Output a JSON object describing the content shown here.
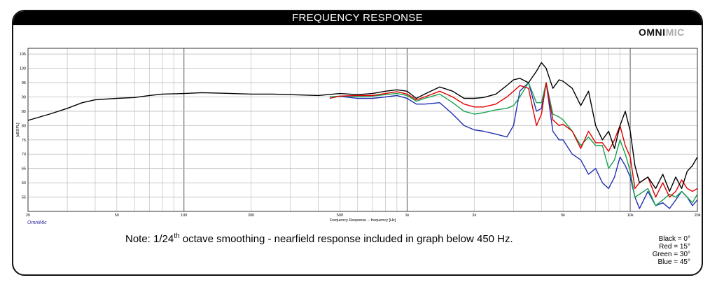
{
  "title": "FREQUENCY RESPONSE",
  "brand": {
    "part1": "OMNI",
    "part2": "MIC"
  },
  "app_tag": "OmniMic",
  "note": {
    "before": "Note: 1/24",
    "sup": "th",
    "after": " octave smoothing - nearfield response included in graph below 450 Hz."
  },
  "legend": [
    "Black = 0°",
    "Red = 15°",
    "Green = 30°",
    "Blue = 45°"
  ],
  "chart_data": {
    "type": "line",
    "xlabel": "Frequency Response -- frequency [Hz]",
    "ylabel": "[dBSPL]",
    "xscale": "log",
    "xlim": [
      20,
      20000
    ],
    "ylim": [
      50,
      107
    ],
    "grid": true,
    "x_tick_labels": [
      {
        "value": 20,
        "label": "20"
      },
      {
        "value": 50,
        "label": "50"
      },
      {
        "value": 100,
        "label": "100"
      },
      {
        "value": 200,
        "label": "200"
      },
      {
        "value": 500,
        "label": "500"
      },
      {
        "value": 1000,
        "label": "1k"
      },
      {
        "value": 2000,
        "label": "2k"
      },
      {
        "value": 5000,
        "label": "5k"
      },
      {
        "value": 10000,
        "label": "10k"
      },
      {
        "value": 20000,
        "label": "20k"
      }
    ],
    "y_ticks": [
      55,
      60,
      65,
      70,
      75,
      80,
      85,
      90,
      95,
      100,
      105
    ],
    "series": [
      {
        "name": "Black = 0°",
        "color": "#000000",
        "x": [
          20,
          25,
          30,
          35,
          40,
          50,
          60,
          70,
          80,
          100,
          120,
          150,
          200,
          250,
          300,
          400,
          500,
          600,
          700,
          800,
          900,
          1000,
          1100,
          1200,
          1400,
          1600,
          1800,
          2000,
          2200,
          2500,
          2800,
          3000,
          3200,
          3500,
          3800,
          4000,
          4200,
          4500,
          4800,
          5000,
          5500,
          6000,
          6500,
          7000,
          7500,
          8000,
          8500,
          9000,
          9500,
          10000,
          10500,
          11000,
          12000,
          13000,
          14000,
          15000,
          16000,
          17000,
          18000,
          19000,
          20000
        ],
        "y": [
          81.8,
          84,
          86,
          88,
          89,
          89.5,
          89.8,
          90.5,
          91,
          91.2,
          91.5,
          91.3,
          91,
          91,
          90.8,
          90.5,
          91.2,
          90.8,
          91.2,
          92,
          92.5,
          92,
          89.5,
          91,
          93.5,
          92,
          89.5,
          89.5,
          89.8,
          91,
          94,
          96,
          96.5,
          95,
          99,
          102,
          100,
          93,
          96,
          95.5,
          93,
          87,
          92,
          80,
          75,
          78,
          72,
          80,
          85,
          78,
          66,
          60,
          62,
          58,
          63,
          57,
          62,
          58,
          64,
          66,
          69
        ]
      },
      {
        "name": "Red = 15°",
        "color": "#e00000",
        "x": [
          450,
          500,
          600,
          700,
          800,
          900,
          1000,
          1100,
          1200,
          1400,
          1600,
          1800,
          2000,
          2200,
          2500,
          2800,
          3000,
          3200,
          3500,
          3800,
          4000,
          4200,
          4500,
          4800,
          5000,
          5500,
          6000,
          6500,
          7000,
          7500,
          8000,
          8500,
          9000,
          9500,
          10000,
          10500,
          11000,
          12000,
          13000,
          14000,
          15000,
          16000,
          17000,
          18000,
          19000,
          20000
        ],
        "y": [
          89.5,
          90.3,
          90.5,
          90.5,
          91.2,
          91.8,
          91,
          89,
          90,
          92,
          90,
          87.5,
          86.5,
          86.5,
          87.5,
          90,
          92,
          94,
          93,
          80,
          84,
          95,
          82,
          80,
          80.5,
          78,
          72,
          78,
          74,
          74,
          71,
          75,
          80,
          73,
          69,
          58,
          60,
          62,
          55,
          60,
          55,
          57,
          61,
          58,
          57,
          58
        ]
      },
      {
        "name": "Green = 30°",
        "color": "#17a24e",
        "x": [
          450,
          500,
          600,
          700,
          800,
          900,
          1000,
          1100,
          1200,
          1400,
          1600,
          1800,
          2000,
          2200,
          2500,
          2800,
          3000,
          3200,
          3500,
          3800,
          4000,
          4200,
          4500,
          4800,
          5000,
          5500,
          6000,
          6500,
          7000,
          7500,
          8000,
          8500,
          9000,
          9500,
          10000,
          10500,
          11000,
          12000,
          13000,
          14000,
          15000,
          16000,
          17000,
          18000,
          19000,
          20000
        ],
        "y": [
          90,
          90.3,
          90.2,
          90.3,
          90.8,
          91.2,
          90.5,
          88.5,
          89.5,
          91,
          88,
          85,
          84,
          84.5,
          85.5,
          86,
          87,
          90,
          95,
          88,
          88,
          95,
          84,
          83,
          82,
          78,
          73,
          76,
          73,
          73,
          65,
          68,
          75,
          70,
          64,
          55,
          56,
          58,
          52,
          54,
          56,
          55,
          57,
          55,
          53,
          56
        ]
      },
      {
        "name": "Blue = 45°",
        "color": "#2030b0",
        "x": [
          450,
          500,
          600,
          700,
          800,
          900,
          1000,
          1100,
          1200,
          1400,
          1600,
          1800,
          2000,
          2200,
          2500,
          2800,
          3000,
          3200,
          3500,
          3800,
          4000,
          4200,
          4500,
          4800,
          5000,
          5500,
          6000,
          6500,
          7000,
          7500,
          8000,
          8500,
          9000,
          9500,
          10000,
          10500,
          11000,
          12000,
          13000,
          14000,
          15000,
          16000,
          17000,
          18000,
          19000,
          20000
        ],
        "y": [
          90,
          90.2,
          89.5,
          89.5,
          90,
          90.5,
          89.5,
          87.5,
          87.5,
          88,
          84,
          80,
          78.5,
          78,
          77,
          76,
          80,
          92,
          95,
          85,
          86,
          95,
          78,
          75,
          75,
          70,
          68,
          63,
          65,
          60,
          58,
          62,
          69,
          66,
          62,
          55,
          51,
          57,
          52,
          53,
          51,
          54,
          57,
          55,
          52,
          54
        ]
      }
    ]
  }
}
